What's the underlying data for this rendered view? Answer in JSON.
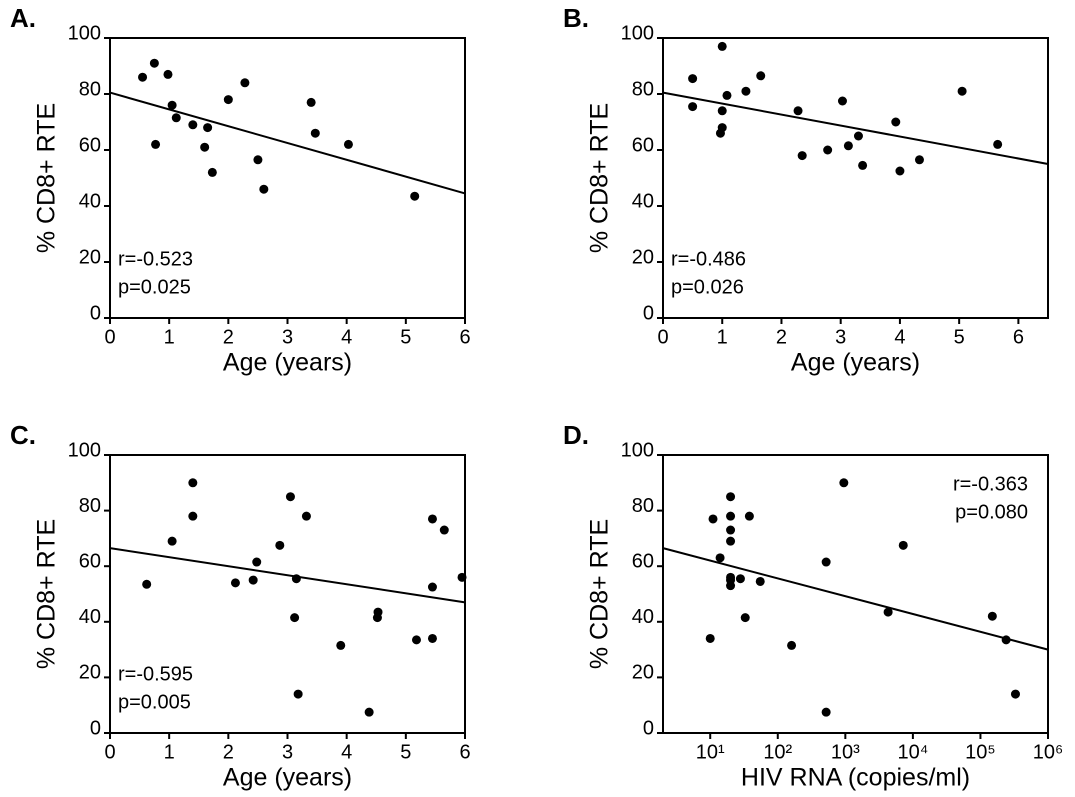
{
  "chart_data": [
    {
      "type": "scatter",
      "title": "A.",
      "x_label": "Age (years)",
      "y_label": "% CD8+ RTE",
      "color": "#000000",
      "x": [
        0.55,
        0.75,
        0.98,
        0.77,
        1.05,
        1.12,
        1.4,
        1.6,
        1.65,
        1.73,
        2.0,
        2.28,
        2.5,
        2.6,
        3.4,
        3.47,
        4.03,
        5.15
      ],
      "values": [
        86,
        91,
        87,
        62,
        76,
        71.5,
        69,
        61,
        68,
        52,
        78,
        84,
        56.5,
        46,
        77,
        66,
        62,
        43.5
      ],
      "fit": {
        "x": [
          0,
          6
        ],
        "values": [
          80.5,
          44.5
        ]
      },
      "xlim": [
        0,
        6
      ],
      "xticks": [
        0,
        1,
        2,
        3,
        4,
        5,
        6
      ],
      "ylim": [
        0,
        100
      ],
      "yticks": [
        0,
        20,
        40,
        60,
        80,
        100
      ],
      "annotations": [
        "r=-0.523",
        "p=0.025"
      ],
      "annotation_corner": "lower left"
    },
    {
      "type": "scatter",
      "title": "B.",
      "x_label": "Age (years)",
      "y_label": "% CD8+ RTE",
      "color": "#000000",
      "x": [
        0.5,
        0.5,
        1.0,
        1.0,
        1.0,
        0.97,
        1.08,
        1.4,
        1.65,
        2.28,
        2.35,
        2.78,
        3.03,
        3.13,
        3.3,
        3.37,
        3.93,
        4.0,
        4.33,
        5.05,
        5.65
      ],
      "values": [
        85.5,
        75.5,
        97,
        74,
        68,
        66,
        79.5,
        81,
        86.5,
        74,
        58,
        60,
        77.5,
        61.5,
        65,
        54.5,
        70,
        52.5,
        56.5,
        81,
        62
      ],
      "fit": {
        "x": [
          0,
          6.5
        ],
        "values": [
          80.5,
          55
        ]
      },
      "xlim": [
        0,
        6.5
      ],
      "xticks": [
        0,
        1,
        2,
        3,
        4,
        5,
        6
      ],
      "ylim": [
        0,
        100
      ],
      "yticks": [
        0,
        20,
        40,
        60,
        80,
        100
      ],
      "annotations": [
        "r=-0.486",
        "p=0.026"
      ],
      "annotation_corner": "lower left"
    },
    {
      "type": "scatter",
      "title": "C.",
      "x_label": "Age (years)",
      "y_label": "% CD8+ RTE",
      "color": "#000000",
      "x": [
        0.62,
        1.05,
        1.4,
        1.4,
        2.12,
        2.42,
        2.48,
        2.87,
        3.05,
        3.12,
        3.15,
        3.18,
        3.32,
        3.9,
        4.38,
        4.52,
        4.53,
        5.18,
        5.45,
        5.45,
        5.45,
        5.65,
        5.95
      ],
      "values": [
        53.5,
        69,
        90,
        78,
        54,
        55,
        61.5,
        67.5,
        85,
        41.5,
        55.5,
        14,
        78,
        31.5,
        7.5,
        41.5,
        43.5,
        33.5,
        77,
        52.5,
        34,
        73,
        56
      ],
      "fit": {
        "x": [
          0,
          6
        ],
        "values": [
          66.5,
          47
        ]
      },
      "xlim": [
        0,
        6
      ],
      "xticks": [
        0,
        1,
        2,
        3,
        4,
        5,
        6
      ],
      "ylim": [
        0,
        100
      ],
      "yticks": [
        0,
        20,
        40,
        60,
        80,
        100
      ],
      "annotations": [
        "r=-0.595",
        "p=0.005"
      ],
      "annotation_corner": "lower left"
    },
    {
      "type": "scatter",
      "title": "D.",
      "x_label": "HIV RNA (copies/ml)",
      "y_label": "% CD8+ RTE",
      "color": "#000000",
      "x_log": true,
      "x": [
        10,
        11,
        14,
        20,
        20,
        20,
        20,
        20,
        20,
        20,
        28,
        33,
        38,
        55,
        160,
        520,
        520,
        950,
        4300,
        7200,
        150000,
        240000,
        330000
      ],
      "values": [
        34,
        77,
        63,
        85,
        78,
        73,
        69,
        56,
        55,
        53,
        55.5,
        41.5,
        78,
        54.5,
        31.5,
        61.5,
        7.5,
        90,
        43.5,
        67.5,
        42,
        33.5,
        14
      ],
      "fit": {
        "x": [
          2,
          1000000
        ],
        "values": [
          66.5,
          30
        ]
      },
      "xlim": [
        2,
        1000000
      ],
      "xticks": [
        {
          "value": 10,
          "label": "10¹"
        },
        {
          "value": 100,
          "label": "10²"
        },
        {
          "value": 1000,
          "label": "10³"
        },
        {
          "value": 10000,
          "label": "10⁴"
        },
        {
          "value": 100000,
          "label": "10⁵"
        },
        {
          "value": 1000000,
          "label": "10⁶"
        }
      ],
      "ylim": [
        0,
        100
      ],
      "yticks": [
        0,
        20,
        40,
        60,
        80,
        100
      ],
      "annotations": [
        "r=-0.363",
        "p=0.080"
      ],
      "annotation_corner": "upper right"
    }
  ]
}
